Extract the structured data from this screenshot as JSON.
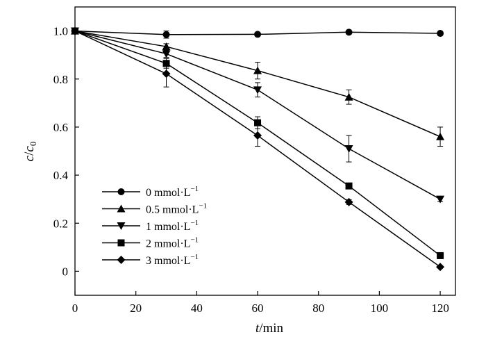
{
  "chart_data": {
    "type": "line",
    "x": [
      0,
      30,
      60,
      90,
      120
    ],
    "xlabel": {
      "var": "t",
      "unit": "/min"
    },
    "ylabel": {
      "var": "c",
      "sep": "/",
      "var2": "c",
      "sub": "0"
    },
    "xlim": [
      0,
      125
    ],
    "ylim": [
      -0.1,
      1.1
    ],
    "xticks": [
      0,
      20,
      40,
      60,
      80,
      100,
      120
    ],
    "yticks": [
      0,
      0.2,
      0.4,
      0.6,
      0.8,
      1.0
    ],
    "ytick_labels": [
      "0",
      "0.2",
      "0.4",
      "0.6",
      "0.8",
      "1.0"
    ],
    "grid": false,
    "legend_position": "bottom-left",
    "series": [
      {
        "name": "0 mmol·L",
        "sup": "−1",
        "marker": "circle",
        "values": [
          1.0,
          0.985,
          0.986,
          0.995,
          0.99
        ],
        "errors": [
          0,
          0.015,
          0.005,
          0.005,
          0.005
        ]
      },
      {
        "name": "0.5 mmol·L",
        "sup": "−1",
        "marker": "triangle-up",
        "values": [
          1.0,
          0.935,
          0.835,
          0.725,
          0.56
        ],
        "errors": [
          0,
          0.012,
          0.035,
          0.03,
          0.04
        ]
      },
      {
        "name": "1 mmol·L",
        "sup": "−1",
        "marker": "triangle-down",
        "values": [
          1.0,
          0.905,
          0.755,
          0.51,
          0.3
        ],
        "errors": [
          0,
          0.015,
          0.03,
          0.055,
          0.01
        ]
      },
      {
        "name": "2 mmol·L",
        "sup": "−1",
        "marker": "square",
        "values": [
          1.0,
          0.865,
          0.618,
          0.355,
          0.065
        ],
        "errors": [
          0,
          0.02,
          0.025,
          0.01,
          0.005
        ]
      },
      {
        "name": "3 mmol·L",
        "sup": "−1",
        "marker": "diamond",
        "values": [
          1.0,
          0.822,
          0.565,
          0.288,
          0.018
        ],
        "errors": [
          0,
          0.055,
          0.045,
          0.01,
          0.005
        ]
      }
    ]
  }
}
